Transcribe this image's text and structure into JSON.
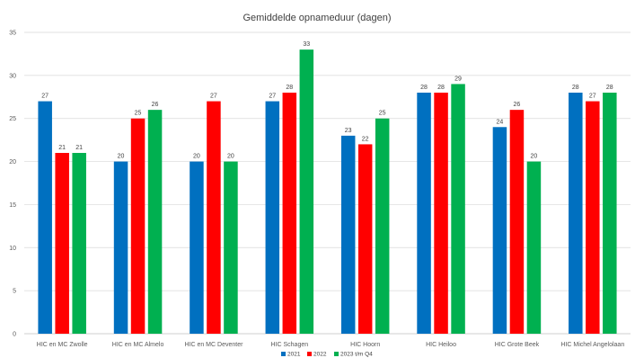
{
  "chart_data": {
    "type": "bar",
    "title": "Gemiddelde opnameduur (dagen)",
    "xlabel": "",
    "ylabel": "",
    "ylim": [
      0,
      35
    ],
    "yticks": [
      0,
      5,
      10,
      15,
      20,
      25,
      30,
      35
    ],
    "grid": true,
    "legend_position": "bottom",
    "categories": [
      "HIC en MC Zwolle",
      "HIC en MC Almelo",
      "HIC en MC Deventer",
      "HIC Schagen",
      "HIC Hoorn",
      "HIC Heiloo",
      "HIC Grote Beek",
      "HIC Michel Angelolaan"
    ],
    "series": [
      {
        "name": "2021",
        "color": "#0070C0",
        "values": [
          27,
          20,
          20,
          27,
          23,
          28,
          24,
          28
        ]
      },
      {
        "name": "2022",
        "color": "#FF0000",
        "values": [
          21,
          25,
          27,
          28,
          22,
          28,
          26,
          27
        ]
      },
      {
        "name": "2023 t/m Q4",
        "color": "#00B050",
        "values": [
          21,
          26,
          20,
          33,
          25,
          29,
          20,
          28
        ]
      }
    ]
  }
}
